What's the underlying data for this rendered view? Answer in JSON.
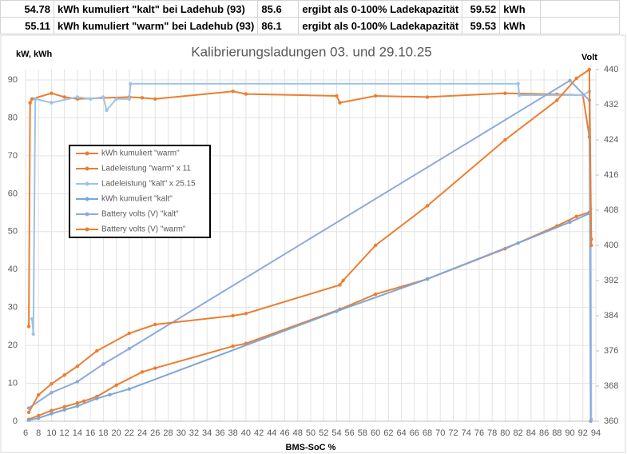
{
  "table": {
    "rows": [
      [
        "54.78",
        "kWh kumuliert \"kalt\" bei Ladehub (93)",
        "85.6",
        "ergibt als 0-100% Ladekapazität",
        "59.52",
        "kWh"
      ],
      [
        "55.11",
        "kWh kumuliert \"warm\" bei Ladehub (93)",
        "86.1",
        "ergibt als 0-100% Ladekapazität",
        "59.53",
        "kWh"
      ]
    ]
  },
  "chart_data": {
    "type": "line",
    "title": "Kalibrierungsladungen 03. und 29.10.25",
    "x_label": "BMS-SoC %",
    "y_label": "kW, kWh",
    "y2_label": "Volt",
    "xlim": [
      6,
      94
    ],
    "xticks": [
      6,
      8,
      10,
      12,
      14,
      16,
      18,
      20,
      22,
      24,
      26,
      28,
      30,
      32,
      34,
      36,
      38,
      40,
      42,
      44,
      46,
      48,
      50,
      52,
      54,
      56,
      58,
      60,
      62,
      64,
      66,
      68,
      70,
      72,
      74,
      76,
      78,
      80,
      82,
      84,
      86,
      88,
      90,
      92,
      94
    ],
    "ylim": [
      0,
      92.75
    ],
    "yticks": [
      0,
      10,
      20,
      30,
      40,
      50,
      60,
      70,
      80,
      90
    ],
    "y2lim": [
      360,
      440
    ],
    "y2ticks": [
      360,
      368,
      376,
      384,
      392,
      400,
      408,
      416,
      424,
      432,
      440
    ],
    "grid": true,
    "series": [
      {
        "name": "kWh kumuliert \"warm\"",
        "color": "#ed7d31",
        "x": [
          6.5,
          8,
          10,
          12,
          14,
          15,
          17,
          20,
          24,
          26,
          38,
          40,
          54.5,
          60,
          68,
          80,
          88,
          91,
          93
        ],
        "values": [
          0.5,
          1.5,
          2.8,
          3.8,
          4.8,
          5.3,
          6.5,
          9.5,
          13,
          14,
          19.8,
          20.5,
          29.5,
          33.5,
          37.5,
          45.5,
          51.5,
          54,
          55.11
        ]
      },
      {
        "name": "Ladeleistung  \"warm\" x 11",
        "color": "#ed7d31",
        "x": [
          6.5,
          6.7,
          7,
          10,
          12,
          14,
          22,
          24,
          26,
          38,
          40,
          54,
          54.5,
          60,
          68,
          80,
          88,
          92,
          93,
          93.3
        ],
        "values": [
          25,
          84,
          85,
          86.5,
          85.5,
          85,
          85.5,
          85.3,
          85,
          87,
          86.3,
          85.8,
          84,
          85.8,
          85.5,
          86.5,
          86.2,
          86,
          75,
          48
        ]
      },
      {
        "name": "Ladeleistung \"kalt\" x 25.15",
        "color": "#9dc3e6",
        "x": [
          7,
          7.2,
          7.5,
          10,
          14,
          16,
          18,
          18.5,
          20,
          22,
          22.2,
          82,
          82.2,
          92,
          93,
          93.2,
          93.3
        ],
        "values": [
          27,
          23,
          85,
          84,
          85.5,
          85,
          85.5,
          82,
          85,
          85,
          89,
          89,
          86,
          86,
          87,
          56,
          0.5
        ]
      },
      {
        "name": "kWh kumuliert \"kalt\"",
        "color": "#7ba7d9",
        "x": [
          6.5,
          8,
          10,
          12,
          14,
          17,
          19,
          22,
          54,
          68,
          82,
          90,
          93
        ],
        "values": [
          0.3,
          0.8,
          2,
          3,
          4,
          6,
          7,
          8.5,
          29,
          37.5,
          47,
          52.5,
          54.78
        ]
      },
      {
        "name": "Battery volts (V) \"kalt\"",
        "color": "#8eaadb",
        "axis": "y2",
        "x": [
          6.5,
          10,
          14,
          18,
          22,
          90,
          93,
          93.2
        ],
        "values": [
          363,
          366.5,
          369,
          373,
          376.5,
          437.5,
          433,
          360
        ]
      },
      {
        "name": "Battery volts (V)  \"warm\"",
        "color": "#ed7d31",
        "axis": "y2",
        "x": [
          6.5,
          8,
          10,
          12,
          14,
          17,
          22,
          26,
          38,
          40,
          54.5,
          55,
          60,
          68,
          80,
          88,
          91,
          93,
          93.3
        ],
        "values": [
          362,
          366,
          368.5,
          370.5,
          372.5,
          376,
          380,
          382,
          384,
          384.5,
          391,
          392,
          400,
          409,
          424,
          433,
          438,
          440,
          400
        ]
      }
    ]
  }
}
